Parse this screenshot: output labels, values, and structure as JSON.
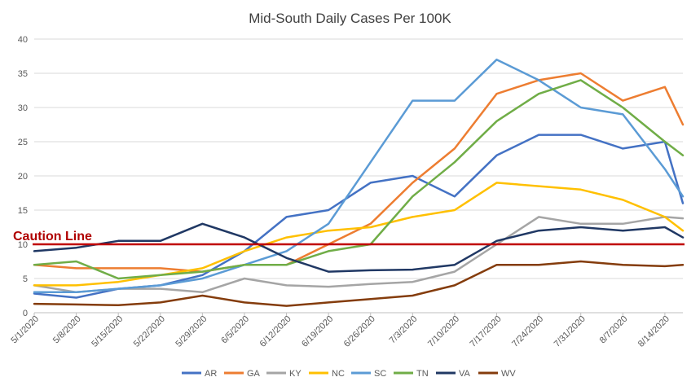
{
  "chart_data": {
    "type": "line",
    "title": "Mid-South Daily Cases Per 100K",
    "xlabel": "",
    "ylabel": "",
    "ylim": [
      0,
      40
    ],
    "yticks": [
      0,
      5,
      10,
      15,
      20,
      25,
      30,
      35,
      40
    ],
    "x_tick_labels": [
      "5/1/2020",
      "5/8/2020",
      "5/15/2020",
      "5/22/2020",
      "5/29/2020",
      "6/5/2020",
      "6/12/2020",
      "6/19/2020",
      "6/26/2020",
      "7/3/2020",
      "7/10/2020",
      "7/17/2020",
      "7/24/2020",
      "7/31/2020",
      "8/7/2020",
      "8/14/2020"
    ],
    "x_start": "5/1/2020",
    "grid": true,
    "legend_position": "bottom",
    "reference_line": {
      "label": "Caution Line",
      "value": 10,
      "color": "#c00000"
    },
    "series": [
      {
        "name": "AR",
        "color": "#4472c4",
        "points": [
          [
            0,
            2.8
          ],
          [
            7,
            2.2
          ],
          [
            14,
            3.5
          ],
          [
            21,
            4
          ],
          [
            28,
            5.5
          ],
          [
            35,
            9
          ],
          [
            42,
            14
          ],
          [
            49,
            15
          ],
          [
            56,
            19
          ],
          [
            63,
            20
          ],
          [
            70,
            17
          ],
          [
            77,
            23
          ],
          [
            84,
            26
          ],
          [
            91,
            26
          ],
          [
            98,
            24
          ],
          [
            105,
            25
          ],
          [
            108,
            16
          ]
        ]
      },
      {
        "name": "GA",
        "color": "#ed7d31",
        "points": [
          [
            0,
            7
          ],
          [
            7,
            6.5
          ],
          [
            14,
            6.5
          ],
          [
            21,
            6.5
          ],
          [
            28,
            6
          ],
          [
            35,
            7
          ],
          [
            42,
            7
          ],
          [
            49,
            10
          ],
          [
            56,
            13
          ],
          [
            63,
            19
          ],
          [
            70,
            24
          ],
          [
            77,
            32
          ],
          [
            84,
            34
          ],
          [
            91,
            35
          ],
          [
            98,
            31
          ],
          [
            105,
            33
          ],
          [
            108,
            27.5
          ]
        ]
      },
      {
        "name": "KY",
        "color": "#a5a5a5",
        "points": [
          [
            0,
            4
          ],
          [
            7,
            3
          ],
          [
            14,
            3.5
          ],
          [
            21,
            3.5
          ],
          [
            28,
            3
          ],
          [
            35,
            5
          ],
          [
            42,
            4
          ],
          [
            49,
            3.8
          ],
          [
            56,
            4.2
          ],
          [
            63,
            4.5
          ],
          [
            70,
            6
          ],
          [
            77,
            10
          ],
          [
            84,
            14
          ],
          [
            91,
            13
          ],
          [
            98,
            13
          ],
          [
            105,
            14
          ],
          [
            108,
            13.8
          ]
        ]
      },
      {
        "name": "NC",
        "color": "#ffc000",
        "points": [
          [
            0,
            4
          ],
          [
            7,
            4
          ],
          [
            14,
            4.5
          ],
          [
            21,
            5.5
          ],
          [
            28,
            6.5
          ],
          [
            35,
            9
          ],
          [
            42,
            11
          ],
          [
            49,
            12
          ],
          [
            56,
            12.5
          ],
          [
            63,
            14
          ],
          [
            70,
            15
          ],
          [
            77,
            19
          ],
          [
            84,
            18.5
          ],
          [
            91,
            18
          ],
          [
            98,
            16.5
          ],
          [
            105,
            14
          ],
          [
            108,
            12
          ]
        ]
      },
      {
        "name": "SC",
        "color": "#5b9bd5",
        "points": [
          [
            0,
            3
          ],
          [
            7,
            3
          ],
          [
            14,
            3.5
          ],
          [
            21,
            4
          ],
          [
            28,
            5
          ],
          [
            35,
            7
          ],
          [
            42,
            9
          ],
          [
            49,
            13
          ],
          [
            56,
            22
          ],
          [
            63,
            31
          ],
          [
            70,
            31
          ],
          [
            77,
            37
          ],
          [
            84,
            34
          ],
          [
            91,
            30
          ],
          [
            98,
            29
          ],
          [
            105,
            21
          ],
          [
            108,
            17
          ]
        ]
      },
      {
        "name": "TN",
        "color": "#70ad47",
        "points": [
          [
            0,
            7
          ],
          [
            7,
            7.5
          ],
          [
            14,
            5
          ],
          [
            21,
            5.5
          ],
          [
            28,
            6
          ],
          [
            35,
            7
          ],
          [
            42,
            7
          ],
          [
            49,
            9
          ],
          [
            56,
            10
          ],
          [
            63,
            17
          ],
          [
            70,
            22
          ],
          [
            77,
            28
          ],
          [
            84,
            32
          ],
          [
            91,
            34
          ],
          [
            98,
            30
          ],
          [
            105,
            25
          ],
          [
            108,
            23
          ]
        ]
      },
      {
        "name": "VA",
        "color": "#203864",
        "points": [
          [
            0,
            9
          ],
          [
            7,
            9.5
          ],
          [
            14,
            10.5
          ],
          [
            21,
            10.5
          ],
          [
            28,
            13
          ],
          [
            35,
            11
          ],
          [
            42,
            8
          ],
          [
            49,
            6
          ],
          [
            56,
            6.2
          ],
          [
            63,
            6.3
          ],
          [
            70,
            7
          ],
          [
            77,
            10.5
          ],
          [
            84,
            12
          ],
          [
            91,
            12.5
          ],
          [
            98,
            12
          ],
          [
            105,
            12.5
          ],
          [
            108,
            11
          ]
        ]
      },
      {
        "name": "WV",
        "color": "#843c0c",
        "points": [
          [
            0,
            1.3
          ],
          [
            7,
            1.2
          ],
          [
            14,
            1.1
          ],
          [
            21,
            1.5
          ],
          [
            28,
            2.5
          ],
          [
            35,
            1.5
          ],
          [
            42,
            1
          ],
          [
            49,
            1.5
          ],
          [
            56,
            2
          ],
          [
            63,
            2.5
          ],
          [
            70,
            4
          ],
          [
            77,
            7
          ],
          [
            84,
            7
          ],
          [
            91,
            7.5
          ],
          [
            98,
            7
          ],
          [
            105,
            6.8
          ],
          [
            108,
            7
          ]
        ]
      }
    ]
  }
}
